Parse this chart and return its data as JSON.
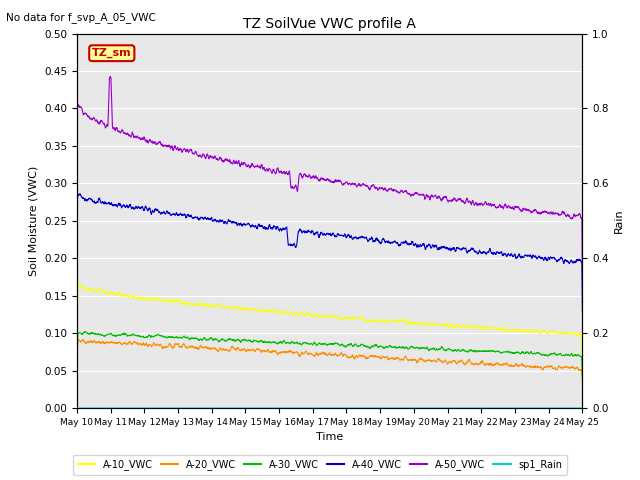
{
  "title": "TZ SoilVue VWC profile A",
  "subtitle": "No data for f_svp_A_05_VWC",
  "xlabel": "Time",
  "ylabel_left": "Soil Moisture (VWC)",
  "ylabel_right": "Rain",
  "xlim": [
    0,
    15.0
  ],
  "ylim_left": [
    0.0,
    0.5
  ],
  "ylim_right": [
    0.0,
    1.0
  ],
  "xtick_labels": [
    "May 10",
    "May 11",
    "May 12",
    "May 13",
    "May 14",
    "May 15",
    "May 16",
    "May 17",
    "May 18",
    "May 19",
    "May 20",
    "May 21",
    "May 22",
    "May 23",
    "May 24",
    "May 25"
  ],
  "xtick_positions": [
    0,
    1,
    2,
    3,
    4,
    5,
    6,
    7,
    8,
    9,
    10,
    11,
    12,
    13,
    14,
    15
  ],
  "yticks_left": [
    0.0,
    0.05,
    0.1,
    0.15,
    0.2,
    0.25,
    0.3,
    0.35,
    0.4,
    0.45,
    0.5
  ],
  "yticks_right": [
    0.0,
    0.2,
    0.4,
    0.6,
    0.8,
    1.0
  ],
  "background_color": "#e8e8e8",
  "grid_color": "#ffffff",
  "colors": {
    "a10": "#ffff00",
    "a20": "#ff8c00",
    "a30": "#00bb00",
    "a40": "#0000cc",
    "a50": "#9900cc",
    "rain": "#00cccc"
  },
  "annotation_box": {
    "text": "TZ_sm",
    "facecolor": "#ffff99",
    "edgecolor": "#cc0000",
    "textcolor": "#cc0000"
  },
  "legend_labels": [
    "A-10_VWC",
    "A-20_VWC",
    "A-30_VWC",
    "A-40_VWC",
    "A-50_VWC",
    "sp1_Rain"
  ]
}
